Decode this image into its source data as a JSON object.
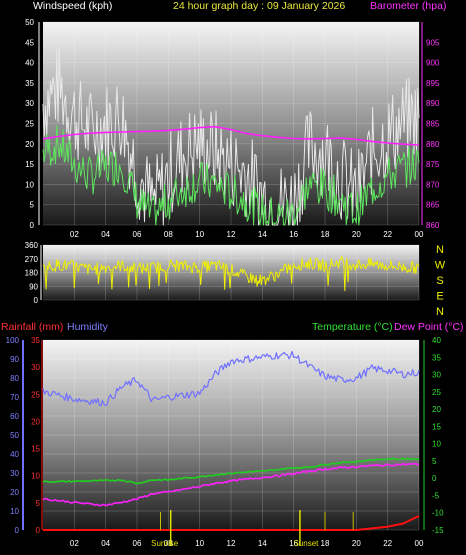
{
  "header": {
    "wind_title": "Windspeed (kph)",
    "date_title": "24 hour graph day : 09 January 2026",
    "baro_title": "Barometer (hpa)"
  },
  "lower_header": {
    "rain_title": "Rainfall (mm)",
    "hum_title": "Humidity",
    "temp_title": "Temperature (°C)",
    "dew_title": "Dew Point (°C)"
  },
  "time_labels": [
    "02",
    "04",
    "06",
    "08",
    "10",
    "12",
    "14",
    "16",
    "18",
    "20",
    "22",
    "00"
  ],
  "sun_labels": [
    "Sunrise",
    "Sunset"
  ],
  "compass": [
    "N",
    "W",
    "S",
    "E",
    "N"
  ],
  "colors": {
    "wind_gust": "#e8e8e8",
    "wind_avg": "#5ee65e",
    "barometer": "#ff20ff",
    "direction": "#f0f000",
    "temperature": "#20d020",
    "dewpoint": "#ff20ff",
    "humidity": "#7070ff",
    "rainfall": "#ff1010",
    "sun_marker": "#e0e000"
  },
  "chart_data": [
    {
      "type": "line",
      "title": "24 hour graph day : 09 January 2026",
      "ylabel": "Windspeed (kph)",
      "y2label": "Barometer (hpa)",
      "ylim": [
        0,
        50
      ],
      "y2lim": [
        860,
        910
      ],
      "yticks": [
        "0",
        "5",
        "10",
        "15",
        "20",
        "25",
        "30",
        "35",
        "40",
        "45",
        "50"
      ],
      "y2ticks": [
        "860",
        "865",
        "870",
        "875",
        "880",
        "885",
        "890",
        "895",
        "900",
        "905"
      ],
      "x_hours": [
        0,
        1,
        2,
        3,
        4,
        5,
        6,
        7,
        8,
        9,
        10,
        11,
        12,
        13,
        14,
        15,
        16,
        17,
        18,
        19,
        20,
        21,
        22,
        23,
        24
      ],
      "series": [
        {
          "name": "Windspeed (kph)",
          "kind": "gust",
          "values": [
            30,
            34,
            27,
            23,
            25,
            27,
            13,
            5,
            12,
            18,
            20,
            18,
            15,
            13,
            7,
            5,
            6,
            19,
            18,
            12,
            7,
            18,
            22,
            25,
            27
          ]
        },
        {
          "name": "Windspeed (kph)",
          "kind": "avg",
          "values": [
            18,
            20,
            15,
            12,
            14,
            15,
            6,
            2,
            6,
            9,
            11,
            10,
            8,
            6,
            3,
            2,
            3,
            10,
            9,
            6,
            3,
            9,
            12,
            14,
            15
          ]
        },
        {
          "name": "Barometer (hpa)",
          "kind": "pressure",
          "values": [
            881.2,
            881.8,
            882.3,
            882.6,
            882.8,
            882.9,
            883.0,
            883.1,
            883.3,
            883.6,
            884.0,
            884.2,
            883.5,
            882.5,
            882.0,
            881.6,
            881.3,
            881.2,
            881.3,
            881.4,
            881.1,
            880.6,
            880.2,
            879.9,
            879.7
          ]
        }
      ]
    },
    {
      "type": "scatter",
      "ylabel": "Direction",
      "ylim": [
        0,
        360
      ],
      "yticks": [
        "0",
        "90",
        "180",
        "270",
        "360"
      ],
      "x_hours": [
        0,
        1,
        2,
        3,
        4,
        5,
        6,
        7,
        8,
        9,
        10,
        11,
        12,
        13,
        14,
        15,
        16,
        17,
        18,
        19,
        20,
        21,
        22,
        23,
        24
      ],
      "values": [
        210,
        230,
        220,
        200,
        215,
        225,
        205,
        210,
        230,
        220,
        215,
        225,
        200,
        150,
        130,
        170,
        230,
        240,
        225,
        250,
        230,
        235,
        225,
        215,
        210
      ]
    },
    {
      "type": "line",
      "ylabel_left": "Rainfall (mm)",
      "ylabel_left2": "Humidity",
      "ylabel_right": "Temperature (°C)",
      "ylabel_right2": "Dew Point (°C)",
      "humidity_ylim": [
        0,
        100
      ],
      "humidity_ticks": [
        "0",
        "10",
        "20",
        "30",
        "40",
        "50",
        "60",
        "70",
        "80",
        "90",
        "100"
      ],
      "rain_ylim": [
        0,
        35
      ],
      "rain_ticks": [
        "0",
        "5",
        "10",
        "15",
        "20",
        "25",
        "30",
        "35"
      ],
      "temp_ylim": [
        -15,
        40
      ],
      "temp_ticks": [
        "-15",
        "-10",
        "-5",
        "0",
        "5",
        "10",
        "15",
        "20",
        "25",
        "30",
        "35",
        "40"
      ],
      "x_hours": [
        0,
        1,
        2,
        3,
        4,
        5,
        6,
        7,
        8,
        9,
        10,
        11,
        12,
        13,
        14,
        15,
        16,
        17,
        18,
        19,
        20,
        21,
        22,
        23,
        24
      ],
      "series": [
        {
          "name": "Humidity",
          "values": [
            73,
            71,
            69,
            68,
            67,
            75,
            79,
            68,
            70,
            71,
            72,
            82,
            89,
            90,
            91,
            92,
            92,
            86,
            81,
            79,
            80,
            85,
            84,
            82,
            83
          ]
        },
        {
          "name": "Temperature (°C)",
          "values": [
            -1.0,
            -1.0,
            -0.9,
            -0.8,
            -0.7,
            -0.5,
            -1.5,
            -0.5,
            -0.5,
            0.0,
            0.4,
            1.0,
            1.4,
            1.8,
            2.0,
            2.5,
            3.0,
            3.2,
            4.0,
            4.5,
            4.8,
            5.3,
            5.5,
            5.6,
            5.6
          ]
        },
        {
          "name": "Dew Point (°C)",
          "values": [
            -6.0,
            -6.5,
            -7.0,
            -7.5,
            -7.8,
            -7.0,
            -6.0,
            -4.5,
            -4.0,
            -3.2,
            -2.4,
            -1.5,
            -0.8,
            -0.3,
            0.2,
            0.7,
            1.3,
            2.0,
            2.6,
            3.0,
            3.3,
            3.6,
            3.8,
            4.0,
            4.1
          ]
        },
        {
          "name": "Rainfall (mm)",
          "values": [
            0,
            0,
            0,
            0,
            0,
            0,
            0,
            0,
            0,
            0,
            0,
            0,
            0,
            0,
            0,
            0,
            0,
            0,
            0,
            0,
            0,
            0.3,
            0.6,
            1.2,
            2.6
          ]
        }
      ],
      "rain_rate_spikes_hours": [
        7.5,
        18.0,
        19.8
      ],
      "sunrise_hour": 8.15,
      "sunset_hour": 16.4
    }
  ]
}
